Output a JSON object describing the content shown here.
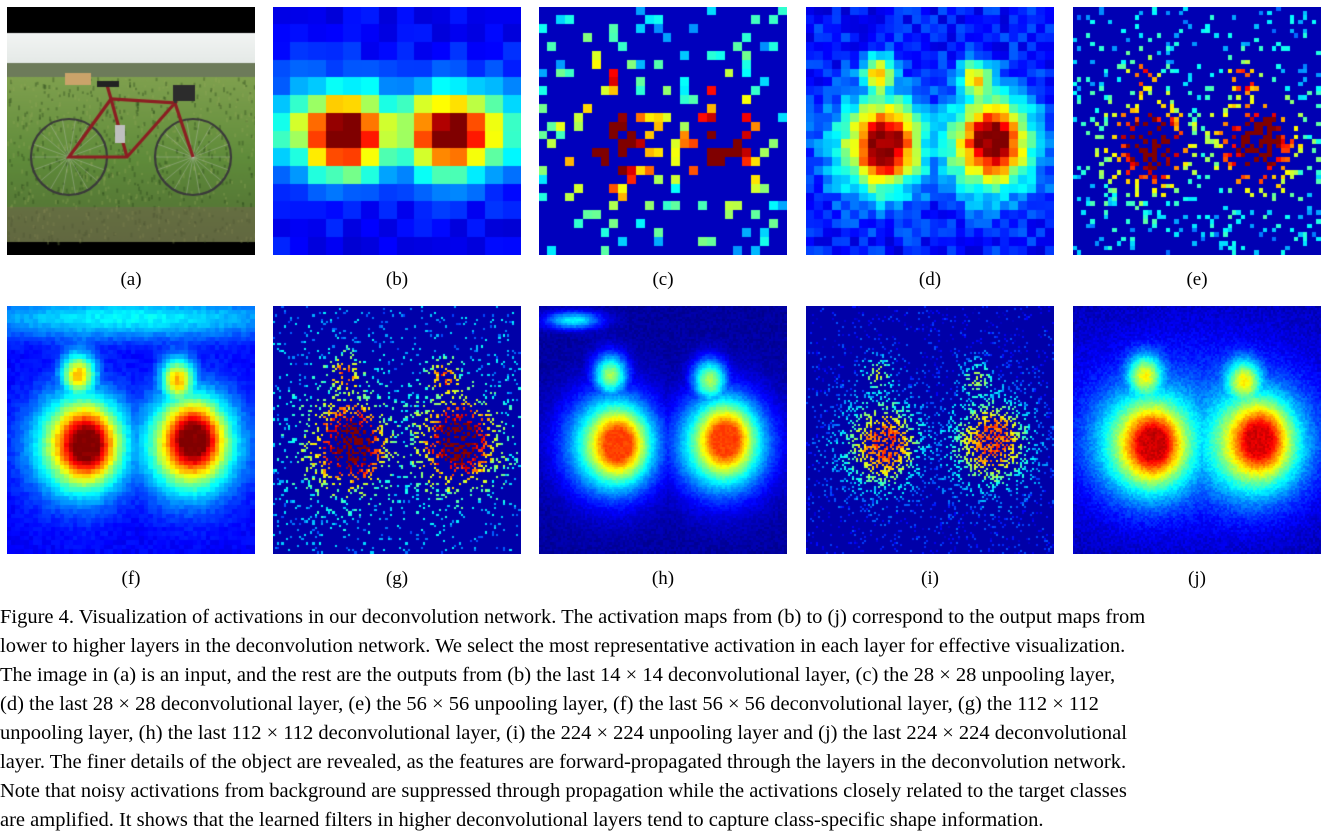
{
  "figure": {
    "panels": [
      {
        "id": "a",
        "label": "(a)",
        "kind": "photo"
      },
      {
        "id": "b",
        "label": "(b)",
        "kind": "heatmap"
      },
      {
        "id": "c",
        "label": "(c)",
        "kind": "heatmap"
      },
      {
        "id": "d",
        "label": "(d)",
        "kind": "heatmap"
      },
      {
        "id": "e",
        "label": "(e)",
        "kind": "heatmap"
      },
      {
        "id": "f",
        "label": "(f)",
        "kind": "heatmap"
      },
      {
        "id": "g",
        "label": "(g)",
        "kind": "heatmap"
      },
      {
        "id": "h",
        "label": "(h)",
        "kind": "heatmap"
      },
      {
        "id": "i",
        "label": "(i)",
        "kind": "heatmap"
      },
      {
        "id": "j",
        "label": "(j)",
        "kind": "heatmap"
      }
    ],
    "colormap": [
      "#00008f",
      "#0000ff",
      "#00ffff",
      "#ffff00",
      "#ff0000",
      "#800000"
    ],
    "caption_lines": [
      "Figure 4. Visualization of activations in our deconvolution network. The activation maps from (b) to (j) correspond to the output maps from",
      "lower to higher layers in the deconvolution network. We select the most representative activation in each layer for effective visualization.",
      "The image in (a) is an input, and the rest are the outputs from (b) the last 14 × 14 deconvolutional layer, (c) the 28 × 28 unpooling layer,",
      "(d) the last 28 × 28 deconvolutional layer, (e) the 56 × 56 unpooling layer, (f) the last 56 × 56 deconvolutional layer, (g) the 112 × 112",
      "unpooling layer, (h) the last 112 × 112 deconvolutional layer, (i) the 224 × 224 unpooling layer and (j) the last 224 × 224 deconvolutional",
      "layer. The finer details of the object are revealed, as the features are forward-propagated through the layers in the deconvolution network.",
      "Note that noisy activations from background are suppressed through propagation while the activations closely related to the target classes",
      "are amplified. It shows that the learned filters in higher deconvolutional layers tend to capture class-specific shape information."
    ]
  }
}
